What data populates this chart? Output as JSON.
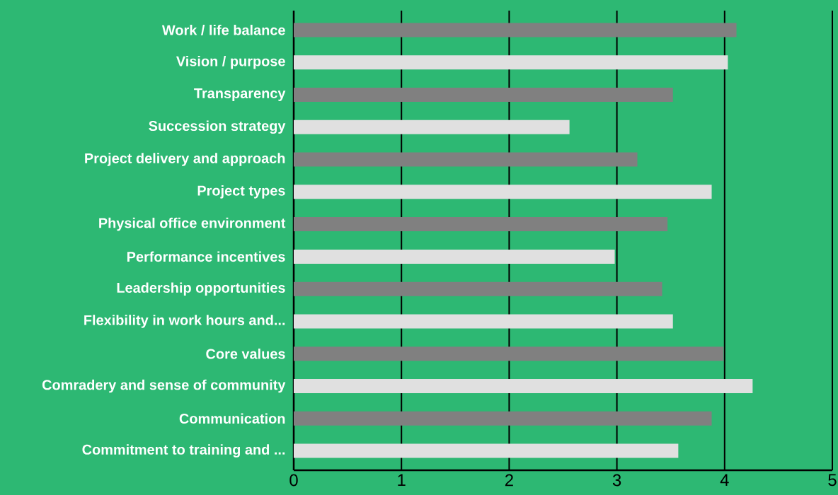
{
  "chart_data": {
    "type": "bar",
    "orientation": "horizontal",
    "categories": [
      "Work / life balance",
      "Vision / purpose",
      "Transparency",
      "Succession strategy",
      "Project delivery and approach",
      "Project types",
      "Physical office environment",
      "Performance incentives",
      "Leadership opportunities",
      "Flexibility in work hours and...",
      "Core values",
      "Comradery and sense of community",
      "Communication",
      "Commitment to training and ..."
    ],
    "values": [
      4.11,
      4.03,
      3.52,
      2.56,
      3.19,
      3.88,
      3.47,
      2.98,
      3.42,
      3.52,
      3.99,
      4.26,
      3.88,
      3.57
    ],
    "colors": [
      "#808080",
      "#e0e0e0",
      "#808080",
      "#e0e0e0",
      "#808080",
      "#e0e0e0",
      "#808080",
      "#e0e0e0",
      "#808080",
      "#e0e0e0",
      "#808080",
      "#e0e0e0",
      "#808080",
      "#e0e0e0"
    ],
    "xlim": [
      0,
      5
    ],
    "xticks": [
      0,
      1,
      2,
      3,
      4,
      5
    ],
    "grid": "x"
  }
}
